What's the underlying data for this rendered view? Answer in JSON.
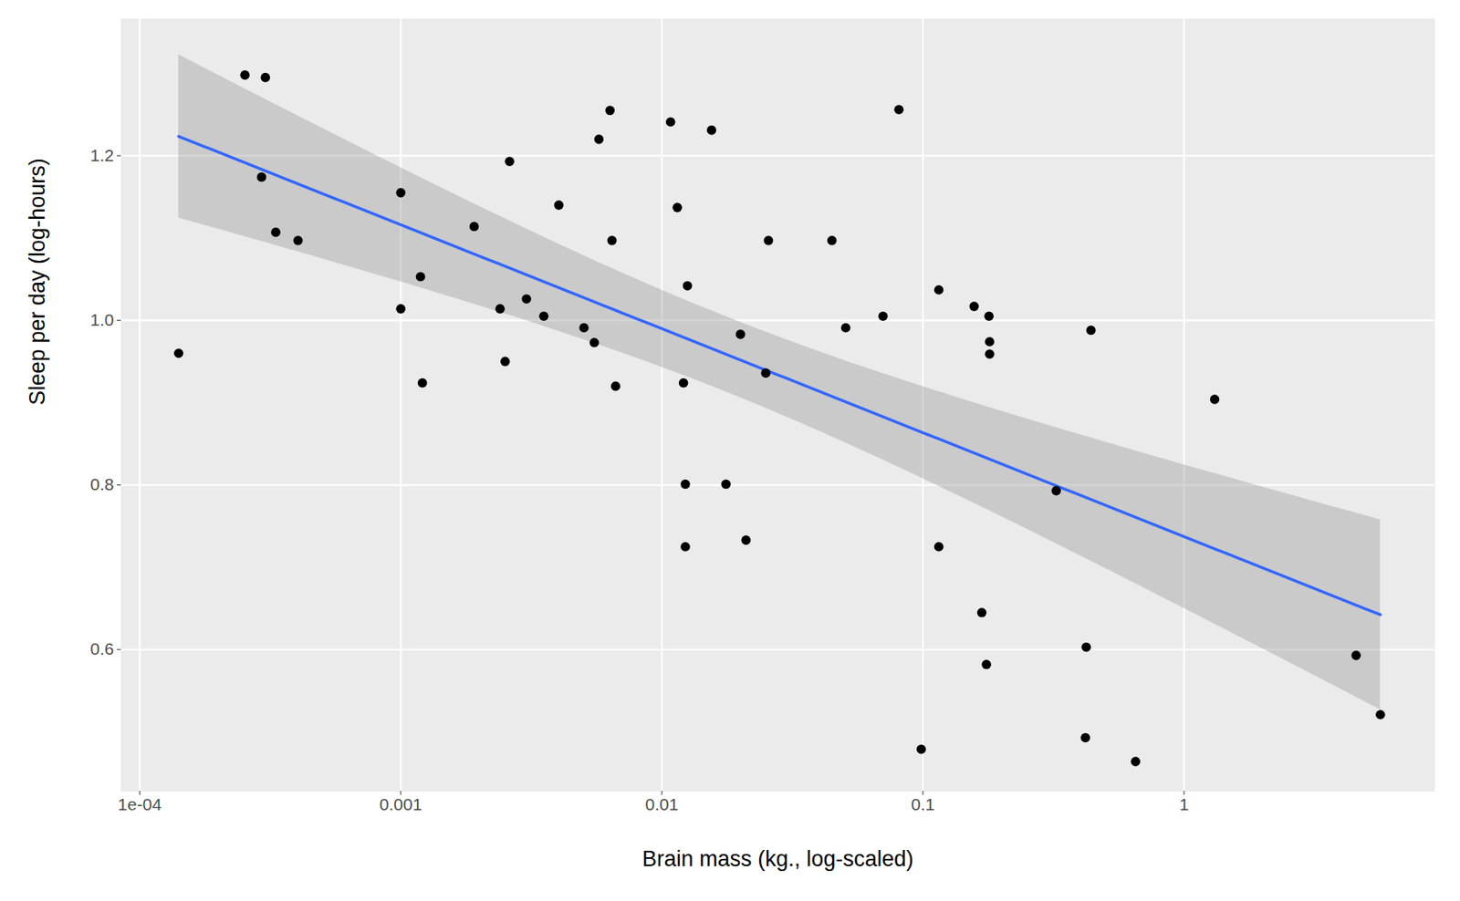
{
  "chart_data": {
    "type": "scatter",
    "x_label": "Brain mass (kg., log-scaled)",
    "y_label": "Sleep per day (log-hours)",
    "x": [
      0.000141,
      0.000253,
      0.000303,
      0.000293,
      0.000332,
      0.000404,
      0.001,
      0.001,
      0.00119,
      0.00121,
      0.00191,
      0.0024,
      0.00251,
      0.00261,
      0.00303,
      0.00353,
      0.00403,
      0.00503,
      0.00551,
      0.00574,
      0.00633,
      0.00644,
      0.00665,
      0.0108,
      0.01146,
      0.0121,
      0.0123,
      0.0123,
      0.01253,
      0.0155,
      0.0176,
      0.02,
      0.021,
      0.025,
      0.0256,
      0.0448,
      0.0506,
      0.0703,
      0.0809,
      0.0985,
      0.115,
      0.115,
      0.157,
      0.168,
      0.175,
      0.179,
      0.18,
      0.18,
      0.324,
      0.422,
      0.419,
      0.44,
      0.652,
      1.31,
      4.56,
      5.65
    ],
    "values": [
      0.96,
      1.298,
      1.295,
      1.174,
      1.107,
      1.097,
      1.155,
      1.014,
      1.053,
      0.924,
      1.114,
      1.014,
      0.95,
      1.193,
      1.026,
      1.005,
      1.14,
      0.991,
      0.973,
      1.22,
      1.255,
      1.097,
      0.92,
      1.241,
      1.137,
      0.924,
      0.801,
      0.725,
      1.042,
      1.231,
      0.801,
      0.983,
      0.733,
      0.936,
      1.097,
      1.097,
      0.991,
      1.005,
      1.256,
      0.479,
      1.037,
      0.725,
      1.017,
      0.645,
      0.582,
      1.005,
      0.974,
      0.959,
      0.793,
      0.603,
      0.493,
      0.988,
      0.464,
      0.904,
      0.593,
      0.521
    ],
    "color": "#000000",
    "log": "x",
    "grid": true,
    "xlim": [
      8.5e-05,
      9.1
    ],
    "xticks": [
      {
        "value": 0.0001,
        "label": "1e-04"
      },
      0.001,
      0.01,
      0.1,
      1
    ],
    "ylim": [
      0.428,
      1.366
    ],
    "yticks": [
      0.6,
      0.8,
      {
        "value": 1.0,
        "label": "1.0"
      },
      1.2
    ]
  }
}
